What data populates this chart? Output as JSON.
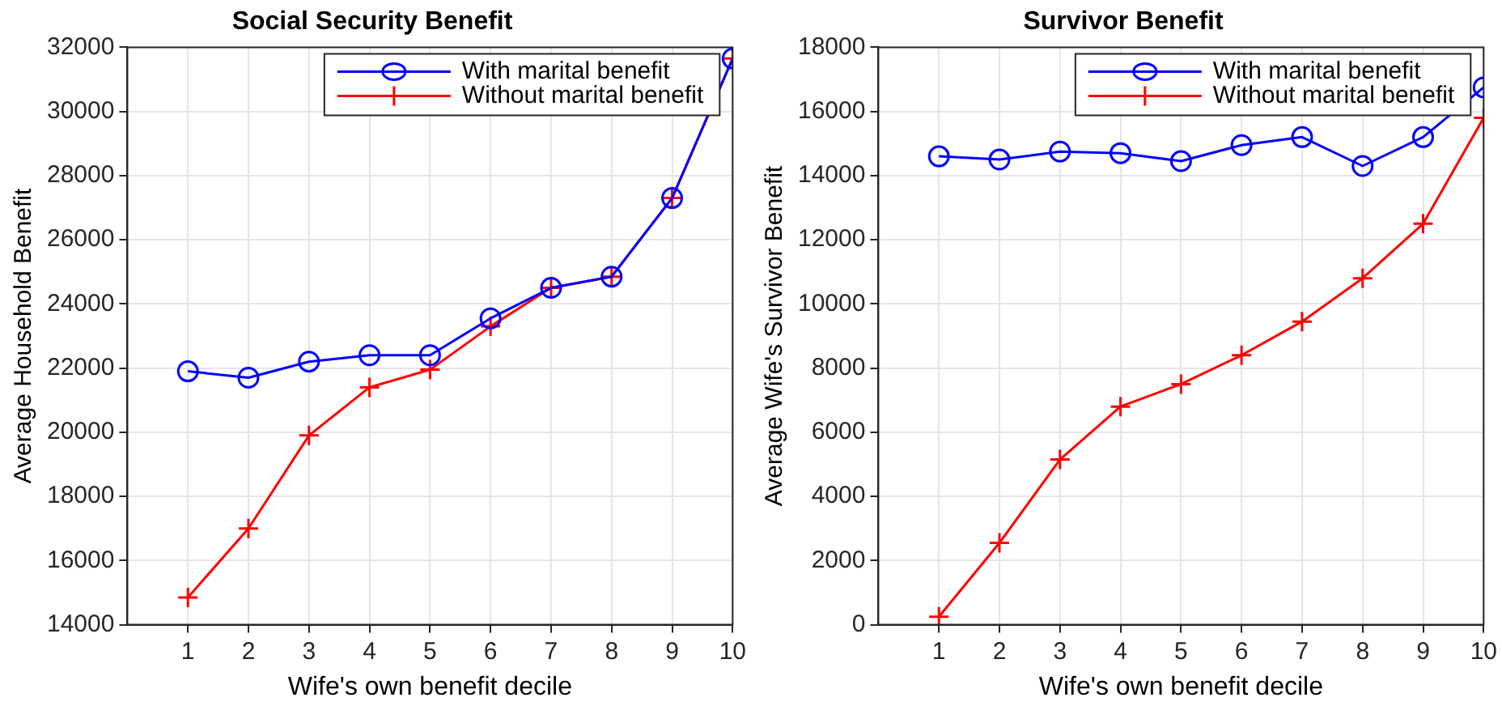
{
  "chart_data": [
    {
      "type": "line",
      "title": "Social Security Benefit",
      "xlabel": "Wife's own benefit decile",
      "ylabel": "Average Household Benefit",
      "x": [
        1,
        2,
        3,
        4,
        5,
        6,
        7,
        8,
        9,
        10
      ],
      "xlim": [
        0,
        10
      ],
      "xticks": [
        1,
        2,
        3,
        4,
        5,
        6,
        7,
        8,
        9,
        10
      ],
      "ylim": [
        14000,
        32000
      ],
      "yticks": [
        14000,
        16000,
        18000,
        20000,
        22000,
        24000,
        26000,
        28000,
        30000,
        32000
      ],
      "grid": true,
      "legend": "top right",
      "line_style": "solid",
      "series": [
        {
          "name": "With marital benefit",
          "color": "#0000ff",
          "marker": "circle",
          "values": [
            21900,
            21700,
            22200,
            22400,
            22400,
            23550,
            24500,
            24850,
            27300,
            31650
          ]
        },
        {
          "name": "Without marital benefit",
          "color": "#ff0000",
          "marker": "cross",
          "values": [
            14850,
            17000,
            19900,
            21400,
            21950,
            23300,
            24500,
            24850,
            27300,
            31650
          ]
        }
      ]
    },
    {
      "type": "line",
      "title": "Survivor Benefit",
      "xlabel": "Wife's own benefit decile",
      "ylabel": "Average Wife's Survivor Benefit",
      "x": [
        1,
        2,
        3,
        4,
        5,
        6,
        7,
        8,
        9,
        10
      ],
      "xlim": [
        0,
        10
      ],
      "xticks": [
        1,
        2,
        3,
        4,
        5,
        6,
        7,
        8,
        9,
        10
      ],
      "ylim": [
        0,
        18000
      ],
      "yticks": [
        0,
        2000,
        4000,
        6000,
        8000,
        10000,
        12000,
        14000,
        16000,
        18000
      ],
      "grid": true,
      "legend": "top right",
      "line_style": "solid",
      "series": [
        {
          "name": "With marital benefit",
          "color": "#0000ff",
          "marker": "circle",
          "values": [
            14600,
            14500,
            14750,
            14700,
            14450,
            14950,
            15200,
            14300,
            15200,
            16750
          ]
        },
        {
          "name": "Without marital benefit",
          "color": "#ff0000",
          "marker": "cross",
          "values": [
            250,
            2550,
            5150,
            6800,
            7500,
            8400,
            9450,
            10800,
            12500,
            15800
          ]
        }
      ]
    }
  ]
}
